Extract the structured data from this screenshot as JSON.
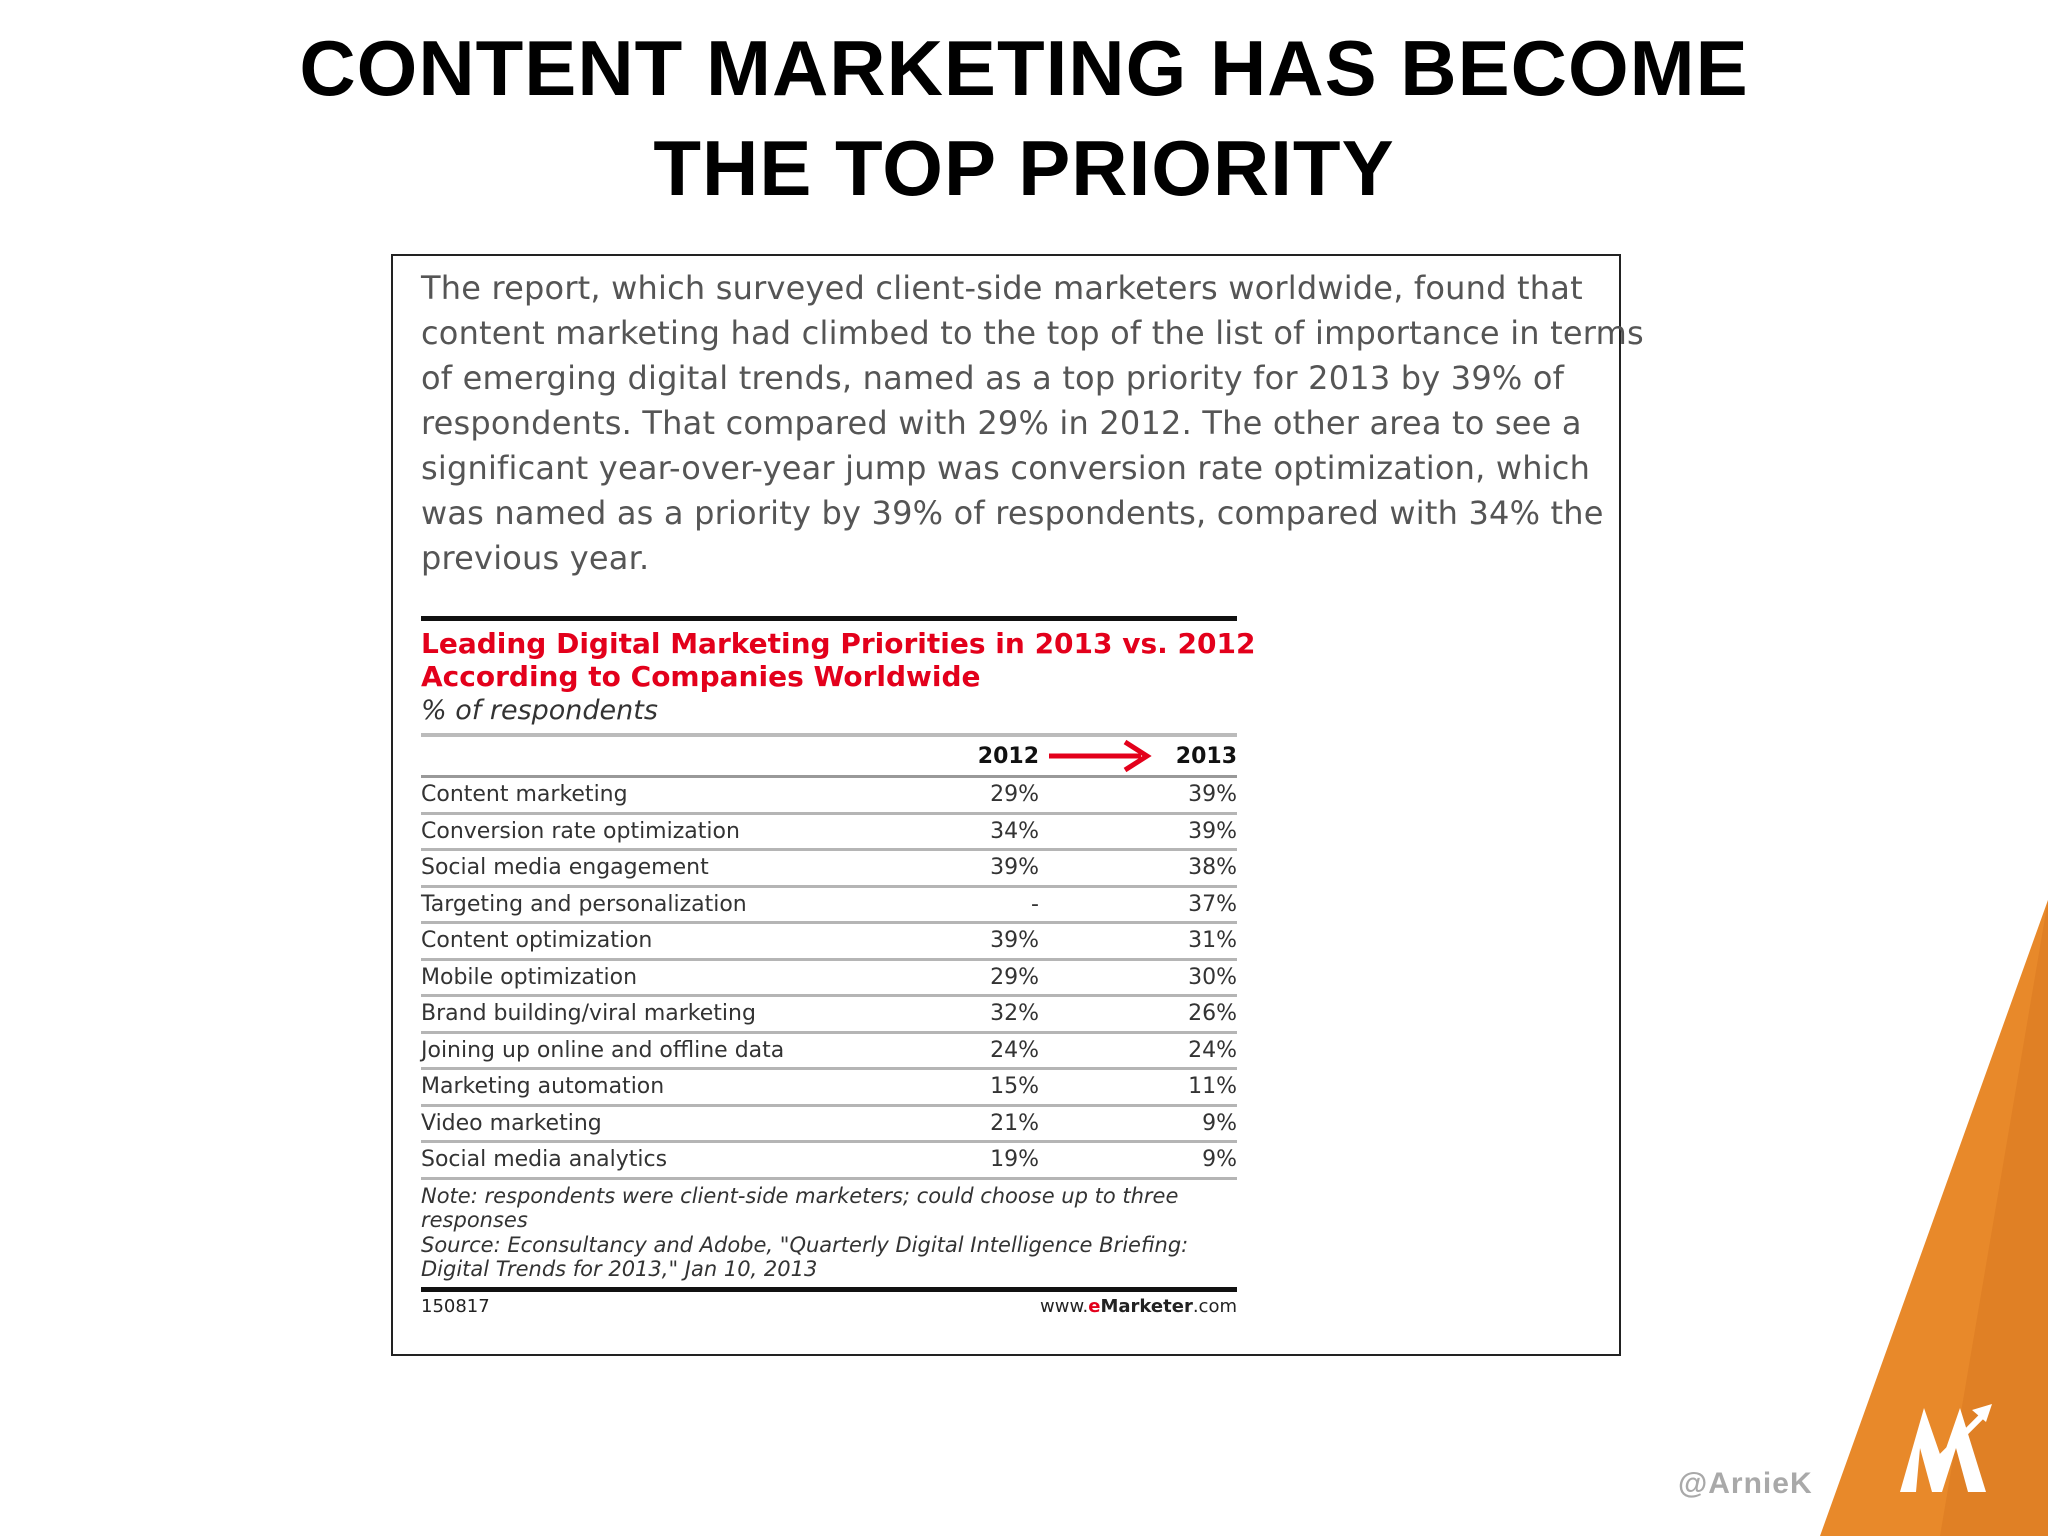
{
  "slide": {
    "title_line1": "CONTENT MARKETING HAS BECOME",
    "title_line2": "THE TOP PRIORITY",
    "handle": "@ArnieK"
  },
  "intro": {
    "lines": [
      "The report, which surveyed client-side marketers worldwide, found that",
      "content marketing had climbed to the top of the list of importance in terms",
      "of emerging digital trends, named as a top priority for 2013 by 39% of",
      "respondents. That compared with 29% in 2012. The other area to see a",
      "significant year-over-year jump was conversion rate optimization, which",
      "was named as a priority by 39% of respondents, compared with 34% the",
      "previous year."
    ]
  },
  "chart_data": {
    "type": "table",
    "title_line1": "Leading Digital Marketing Priorities in 2013 vs. 2012",
    "title_line2": "According to Companies Worldwide",
    "subtitle": "% of respondents",
    "columns": [
      "2012",
      "2013"
    ],
    "rows": [
      {
        "label": "Content marketing",
        "y2012": "29%",
        "y2013": "39%"
      },
      {
        "label": "Conversion rate optimization",
        "y2012": "34%",
        "y2013": "39%"
      },
      {
        "label": "Social media engagement",
        "y2012": "39%",
        "y2013": "38%"
      },
      {
        "label": "Targeting and personalization",
        "y2012": "-",
        "y2013": "37%"
      },
      {
        "label": "Content optimization",
        "y2012": "39%",
        "y2013": "31%"
      },
      {
        "label": "Mobile optimization",
        "y2012": "29%",
        "y2013": "30%"
      },
      {
        "label": "Brand building/viral marketing",
        "y2012": "32%",
        "y2013": "26%"
      },
      {
        "label": "Joining up online and offline data",
        "y2012": "24%",
        "y2013": "24%"
      },
      {
        "label": "Marketing automation",
        "y2012": "15%",
        "y2013": "11%"
      },
      {
        "label": "Video marketing",
        "y2012": "21%",
        "y2013": "9%"
      },
      {
        "label": "Social media analytics",
        "y2012": "19%",
        "y2013": "9%"
      }
    ],
    "note_lines": [
      "Note: respondents were client-side marketers; could choose up to three",
      "responses",
      "Source: Econsultancy and Adobe, \"Quarterly Digital Intelligence Briefing:",
      "Digital Trends for 2013,\" Jan 10, 2013"
    ],
    "code": "150817",
    "site_prefix": "www.",
    "site_e": "e",
    "site_brand": "Marketer",
    "site_suffix": ".com"
  },
  "colors": {
    "accent_red": "#e3001b",
    "deco_orange": "#e8892a",
    "deco_orange_dark": "#d26f1c"
  },
  "icons": {
    "arrow": "red-right-arrow-icon",
    "logo": "mountain-arrow-logo-icon"
  }
}
